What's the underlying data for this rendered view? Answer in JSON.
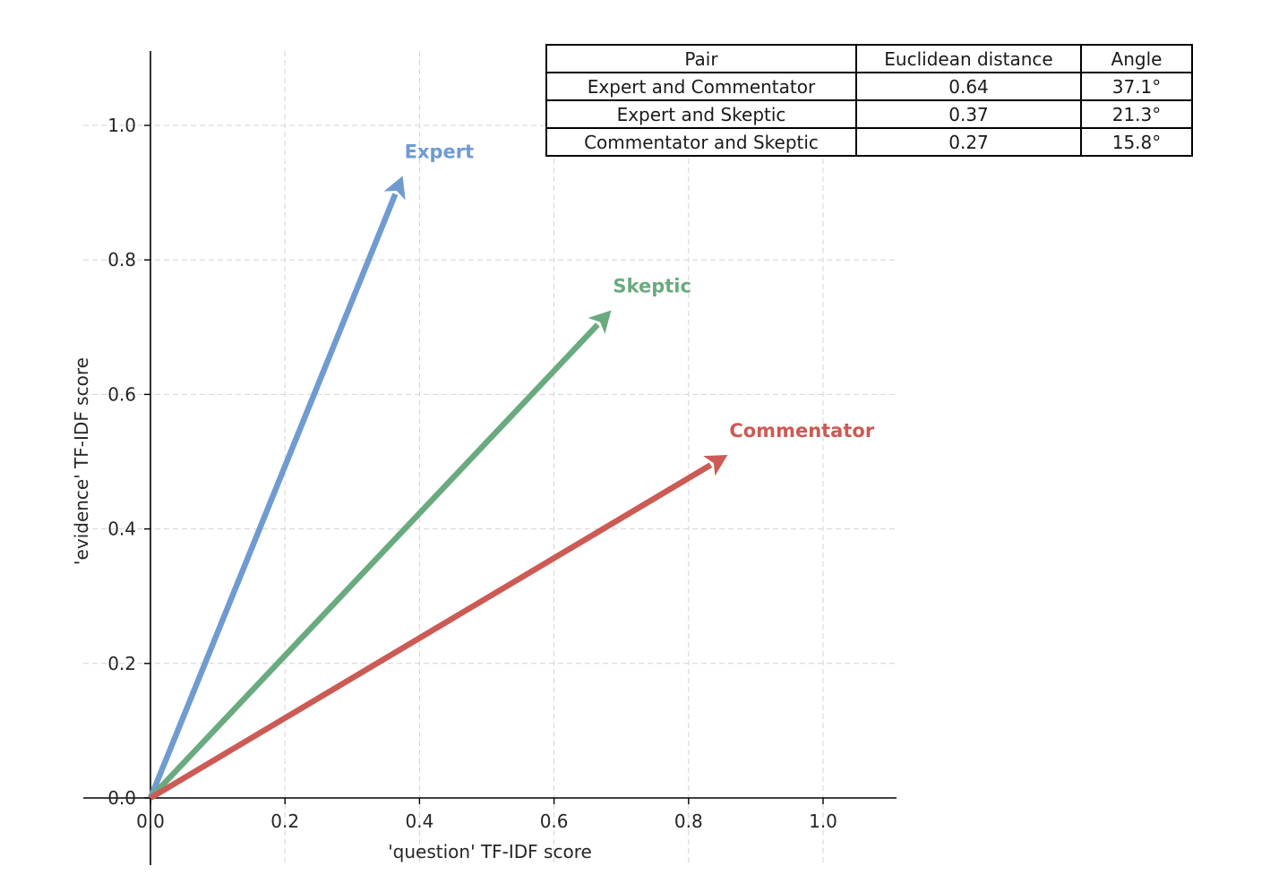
{
  "chart_data": {
    "type": "vector",
    "xlabel": "'question' TF-IDF score",
    "ylabel": "'evidence' TF-IDF score",
    "xlim": [
      -0.1,
      1.11
    ],
    "ylim": [
      -0.1,
      1.11
    ],
    "xticks": [
      0.0,
      0.2,
      0.4,
      0.6,
      0.8,
      1.0
    ],
    "yticks": [
      0.0,
      0.2,
      0.4,
      0.6,
      0.8,
      1.0
    ],
    "xtick_labels": [
      "0.0",
      "0.2",
      "0.4",
      "0.6",
      "0.8",
      "1.0"
    ],
    "ytick_labels": [
      "0.0",
      "0.2",
      "0.4",
      "0.6",
      "0.8",
      "1.0"
    ],
    "grid": true,
    "series": [
      {
        "name": "Expert",
        "x": 0.375,
        "y": 0.925,
        "color": "#6f9bd1"
      },
      {
        "name": "Skeptic",
        "x": 0.685,
        "y": 0.725,
        "color": "#6aaa7f"
      },
      {
        "name": "Commentator",
        "x": 0.858,
        "y": 0.51,
        "color": "#cc5a55"
      }
    ],
    "table": {
      "headers": [
        "Pair",
        "Euclidean distance",
        "Angle"
      ],
      "rows": [
        [
          "Expert and Commentator",
          "0.64",
          "37.1°"
        ],
        [
          "Expert and Skeptic",
          "0.37",
          "21.3°"
        ],
        [
          "Commentator and Skeptic",
          "0.27",
          "15.8°"
        ]
      ]
    }
  }
}
